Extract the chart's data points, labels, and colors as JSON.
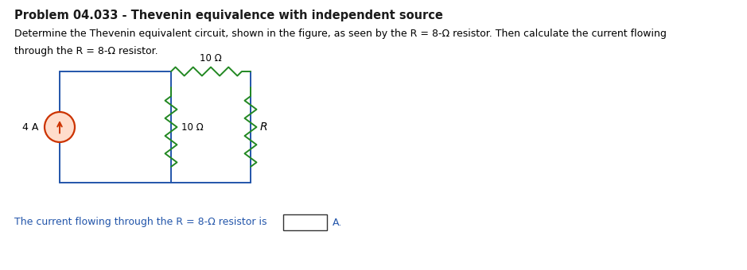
{
  "title": "Problem 04.033 - Thevenin equivalence with independent source",
  "description_line1": "Determine the Thevenin equivalent circuit, shown in the figure, as seen by the R = 8-Ω resistor. Then calculate the current flowing",
  "description_line2": "through the R = 8-Ω resistor.",
  "current_source_label": "4 A",
  "resistor_top_label": "10 Ω",
  "resistor_mid_label": "10 Ω",
  "resistor_R_label": "R",
  "bottom_text_prefix": "The current flowing through the R = 8-Ω resistor is",
  "bottom_text_suffix": "A.",
  "title_color": "#1a1a1a",
  "desc_color": "#000000",
  "wire_color": "#2255aa",
  "resistor_color": "#228822",
  "current_source_edge_color": "#cc3300",
  "current_source_fill": "#ffddcc",
  "current_source_arrow_color": "#cc3300",
  "bottom_text_color": "#2255aa",
  "background_color": "#ffffff",
  "fig_width": 9.39,
  "fig_height": 3.4,
  "dpi": 100
}
